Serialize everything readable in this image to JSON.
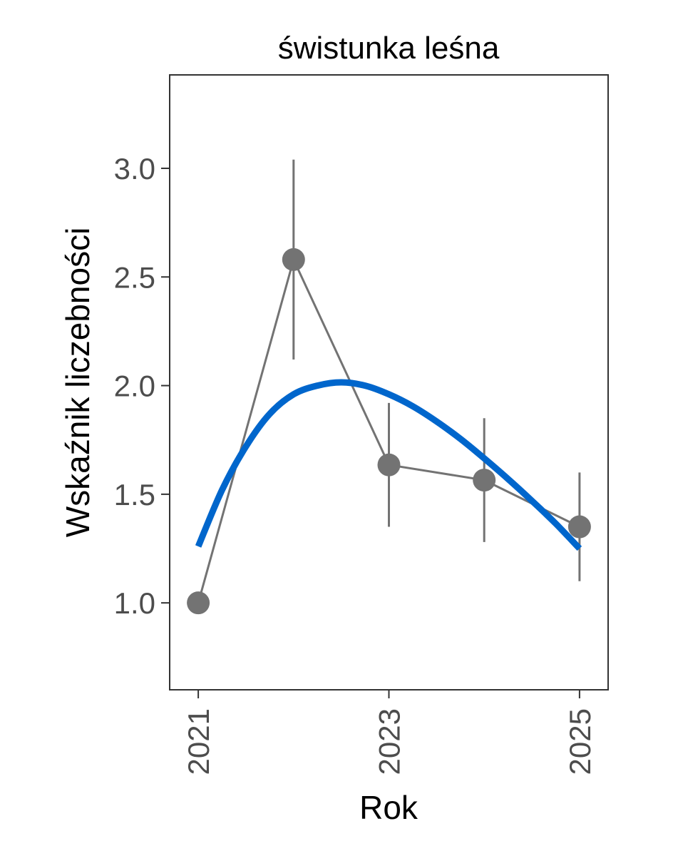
{
  "chart_data": {
    "type": "line",
    "title": "świstunka leśna",
    "xlabel": "Rok",
    "ylabel": "Wskaźnik liczebności",
    "xlim": [
      2020.7,
      2025.3
    ],
    "ylim": [
      0.6,
      3.43
    ],
    "x_ticks": [
      2021,
      2023,
      2025
    ],
    "y_ticks": [
      1.0,
      1.5,
      2.0,
      2.5,
      3.0
    ],
    "x_tick_labels": [
      "2021",
      "2023",
      "2025"
    ],
    "y_tick_labels": [
      "1.0",
      "1.5",
      "2.0",
      "2.5",
      "3.0"
    ],
    "grid": false,
    "legend": "none",
    "series": [
      {
        "kind": "points_with_errorbars",
        "color": "#737373",
        "points": [
          {
            "x": 2021,
            "y": 1.0,
            "lower": null,
            "upper": null
          },
          {
            "x": 2022,
            "y": 2.58,
            "lower": 2.12,
            "upper": 3.04
          },
          {
            "x": 2023,
            "y": 1.635,
            "lower": 1.35,
            "upper": 1.92
          },
          {
            "x": 2024,
            "y": 1.565,
            "lower": 1.28,
            "upper": 1.85
          },
          {
            "x": 2025,
            "y": 1.35,
            "lower": 1.1,
            "upper": 1.6
          }
        ]
      },
      {
        "kind": "trend_curve",
        "color": "#0066cc",
        "points": [
          {
            "x": 2021.0,
            "y": 1.26
          },
          {
            "x": 2021.25,
            "y": 1.52
          },
          {
            "x": 2021.5,
            "y": 1.72
          },
          {
            "x": 2021.75,
            "y": 1.87
          },
          {
            "x": 2022.0,
            "y": 1.96
          },
          {
            "x": 2022.25,
            "y": 2.0
          },
          {
            "x": 2022.5,
            "y": 2.015
          },
          {
            "x": 2022.75,
            "y": 2.0
          },
          {
            "x": 2023.0,
            "y": 1.96
          },
          {
            "x": 2023.25,
            "y": 1.905
          },
          {
            "x": 2023.5,
            "y": 1.835
          },
          {
            "x": 2023.75,
            "y": 1.755
          },
          {
            "x": 2024.0,
            "y": 1.665
          },
          {
            "x": 2024.25,
            "y": 1.57
          },
          {
            "x": 2024.5,
            "y": 1.47
          },
          {
            "x": 2024.75,
            "y": 1.365
          },
          {
            "x": 2025.0,
            "y": 1.25
          }
        ]
      }
    ]
  }
}
